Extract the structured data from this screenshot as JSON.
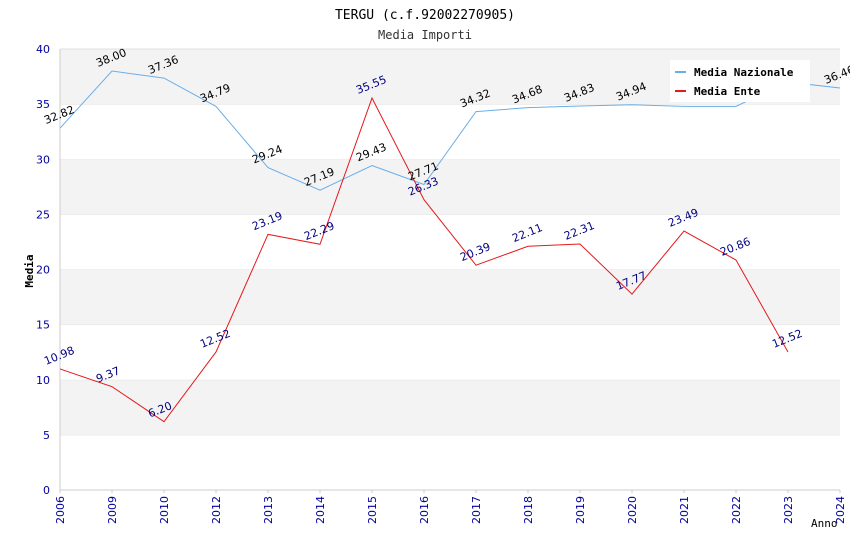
{
  "chart_data": {
    "type": "line",
    "title": "TERGU (c.f.92002270905)",
    "subtitle": "Media Importi",
    "xlabel": "Anno",
    "ylabel": "Media",
    "ylim": [
      0,
      40
    ],
    "yticks": [
      "0",
      "5",
      "10",
      "15",
      "20",
      "25",
      "30",
      "35",
      "40"
    ],
    "categories": [
      "2006",
      "2009",
      "2010",
      "2012",
      "2013",
      "2014",
      "2015",
      "2016",
      "2017",
      "2018",
      "2019",
      "2020",
      "2021",
      "2022",
      "2023",
      "2024"
    ],
    "grid": "horizontal alternating bands",
    "legend_position": "top-right",
    "series": [
      {
        "name": "Media Nazionale",
        "color": "#6aaee8",
        "label_color": "#000000",
        "values": [
          32.82,
          38.0,
          37.36,
          34.79,
          29.24,
          27.19,
          29.43,
          27.71,
          34.32,
          34.68,
          34.83,
          34.94,
          34.8,
          34.8,
          37.0,
          36.46
        ],
        "labels": [
          "32.82",
          "38.00",
          "37.36",
          "34.79",
          "29.24",
          "27.19",
          "29.43",
          "27.71",
          "34.32",
          "34.68",
          "34.83",
          "34.94",
          "",
          "",
          "",
          "36.46"
        ]
      },
      {
        "name": "Media Ente",
        "color": "#e41a1c",
        "label_color": "#000080",
        "values": [
          10.98,
          9.37,
          6.2,
          12.52,
          23.19,
          22.29,
          35.55,
          26.33,
          20.39,
          22.11,
          22.31,
          17.77,
          23.49,
          20.86,
          12.52,
          null
        ],
        "labels": [
          "10.98",
          "9.37",
          "6.20",
          "12.52",
          "23.19",
          "22.29",
          "35.55",
          "26.33",
          "20.39",
          "22.11",
          "22.31",
          "17.77",
          "23.49",
          "20.86",
          "12.52",
          ""
        ]
      }
    ]
  }
}
